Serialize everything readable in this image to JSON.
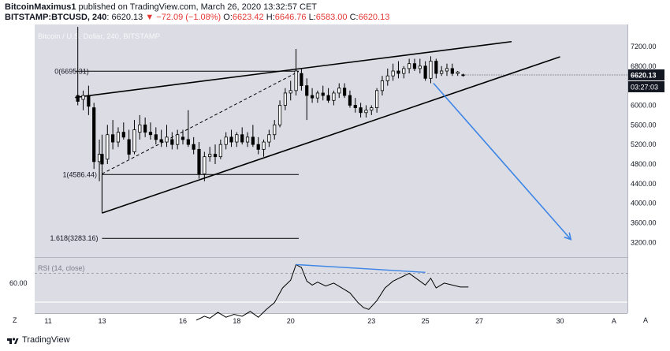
{
  "header": {
    "username": "BitcoinMaximus1",
    "published_text": "published on TradingView.com, March 26, 2020 13:32:57 CET",
    "symbol": "BITSTAMP:BTCUSD, 240",
    "last_price": "6620.13",
    "change": "▼ −72.09 (−1.08%)",
    "o_label": "O:",
    "o_value": "6623.42",
    "h_label": "H:",
    "h_value": "6646.76",
    "l_label": "L:",
    "l_value": "6583.00",
    "c_label": "C:",
    "c_value": "6620.13"
  },
  "footer": {
    "brand": "TradingView"
  },
  "colors": {
    "background": "#ffffff",
    "plot_bg": "#dcdde4",
    "candle_up": "#ffffff",
    "candle_down": "#000000",
    "arrow": "#3d85e6",
    "price_tag_dark": "#131722"
  },
  "chart_data": {
    "type": "candlestick",
    "title": "Bitcoin / U.S. Dollar, 240, BITSTAMP",
    "y_ticks": [
      "7200.00",
      "6800.00",
      "6400.00",
      "6000.00",
      "5600.00",
      "5200.00",
      "4800.00",
      "4400.00",
      "4000.00",
      "3600.00",
      "3200.00"
    ],
    "y_range": [
      2900,
      7650
    ],
    "x_ticks": [
      "11",
      "13",
      "16",
      "18",
      "20",
      "23",
      "25",
      "27",
      "30",
      "A"
    ],
    "x_tick_days": [
      11,
      13,
      16,
      18,
      20,
      23,
      25,
      27,
      30,
      32
    ],
    "x_range_days": [
      10.5,
      32.5
    ],
    "last_price_tag": "6620.13",
    "countdown_tag": "03:27:03",
    "fib_levels": [
      {
        "label": "0(6695.31)",
        "price": 6695.31
      },
      {
        "label": "1(4586.44)",
        "price": 4586.44
      },
      {
        "label": "1.618(3283.16)",
        "price": 3283.16
      }
    ],
    "wedge_upper": [
      [
        12.0,
        6160
      ],
      [
        28.2,
        7300
      ]
    ],
    "wedge_lower": [
      [
        13.0,
        3800
      ],
      [
        30.0,
        6990
      ]
    ],
    "diagonal_dashed": [
      [
        13.0,
        4600
      ],
      [
        20.3,
        6690
      ]
    ],
    "projection_arrow": [
      [
        25.3,
        6450
      ],
      [
        30.4,
        3260
      ]
    ],
    "candles": [
      {
        "d": 12.1,
        "o": 6200,
        "h": 7600,
        "l": 6000,
        "c": 6080
      },
      {
        "d": 12.3,
        "o": 6120,
        "h": 6300,
        "l": 5900,
        "c": 6200
      },
      {
        "d": 12.5,
        "o": 6200,
        "h": 6400,
        "l": 5800,
        "c": 5980
      },
      {
        "d": 12.7,
        "o": 5950,
        "h": 6050,
        "l": 4700,
        "c": 4850
      },
      {
        "d": 12.9,
        "o": 4850,
        "h": 5300,
        "l": 4450,
        "c": 5000
      },
      {
        "d": 13.0,
        "o": 5000,
        "h": 5400,
        "l": 3850,
        "c": 4800
      },
      {
        "d": 13.2,
        "o": 4900,
        "h": 5600,
        "l": 4800,
        "c": 5400
      },
      {
        "d": 13.4,
        "o": 5400,
        "h": 5700,
        "l": 5100,
        "c": 5250
      },
      {
        "d": 13.6,
        "o": 5250,
        "h": 5550,
        "l": 5150,
        "c": 5450
      },
      {
        "d": 13.8,
        "o": 5450,
        "h": 5650,
        "l": 5300,
        "c": 5350
      },
      {
        "d": 14.0,
        "o": 5300,
        "h": 5500,
        "l": 4900,
        "c": 5000
      },
      {
        "d": 14.2,
        "o": 5050,
        "h": 5700,
        "l": 5000,
        "c": 5500
      },
      {
        "d": 14.4,
        "o": 5450,
        "h": 5800,
        "l": 5300,
        "c": 5600
      },
      {
        "d": 14.6,
        "o": 5600,
        "h": 5750,
        "l": 5350,
        "c": 5450
      },
      {
        "d": 14.8,
        "o": 5450,
        "h": 5650,
        "l": 5300,
        "c": 5400
      },
      {
        "d": 15.0,
        "o": 5400,
        "h": 5550,
        "l": 5200,
        "c": 5300
      },
      {
        "d": 15.2,
        "o": 5300,
        "h": 5500,
        "l": 5150,
        "c": 5250
      },
      {
        "d": 15.4,
        "o": 5250,
        "h": 5600,
        "l": 5150,
        "c": 5350
      },
      {
        "d": 15.6,
        "o": 5300,
        "h": 5450,
        "l": 5100,
        "c": 5200
      },
      {
        "d": 15.8,
        "o": 5200,
        "h": 5500,
        "l": 5100,
        "c": 5400
      },
      {
        "d": 16.0,
        "o": 5350,
        "h": 5500,
        "l": 5200,
        "c": 5300
      },
      {
        "d": 16.2,
        "o": 5300,
        "h": 5900,
        "l": 5150,
        "c": 5200
      },
      {
        "d": 16.4,
        "o": 5200,
        "h": 5350,
        "l": 5000,
        "c": 5100
      },
      {
        "d": 16.6,
        "o": 5100,
        "h": 5250,
        "l": 4500,
        "c": 4600
      },
      {
        "d": 16.8,
        "o": 4600,
        "h": 5050,
        "l": 4450,
        "c": 4950
      },
      {
        "d": 17.0,
        "o": 4950,
        "h": 5150,
        "l": 4850,
        "c": 5000
      },
      {
        "d": 17.2,
        "o": 5000,
        "h": 5200,
        "l": 4800,
        "c": 4950
      },
      {
        "d": 17.4,
        "o": 4950,
        "h": 5300,
        "l": 4900,
        "c": 5200
      },
      {
        "d": 17.6,
        "o": 5200,
        "h": 5450,
        "l": 5100,
        "c": 5350
      },
      {
        "d": 17.8,
        "o": 5350,
        "h": 5500,
        "l": 5150,
        "c": 5250
      },
      {
        "d": 18.0,
        "o": 5250,
        "h": 5450,
        "l": 5150,
        "c": 5400
      },
      {
        "d": 18.2,
        "o": 5400,
        "h": 5550,
        "l": 5200,
        "c": 5250
      },
      {
        "d": 18.4,
        "o": 5250,
        "h": 5450,
        "l": 5150,
        "c": 5350
      },
      {
        "d": 18.6,
        "o": 5350,
        "h": 5600,
        "l": 5150,
        "c": 5200
      },
      {
        "d": 18.8,
        "o": 5200,
        "h": 5350,
        "l": 5000,
        "c": 5100
      },
      {
        "d": 19.0,
        "o": 5100,
        "h": 5300,
        "l": 4950,
        "c": 5250
      },
      {
        "d": 19.2,
        "o": 5250,
        "h": 5500,
        "l": 5150,
        "c": 5400
      },
      {
        "d": 19.4,
        "o": 5400,
        "h": 5700,
        "l": 5300,
        "c": 5600
      },
      {
        "d": 19.6,
        "o": 5600,
        "h": 6100,
        "l": 5550,
        "c": 6000
      },
      {
        "d": 19.8,
        "o": 6000,
        "h": 6350,
        "l": 5900,
        "c": 6250
      },
      {
        "d": 20.0,
        "o": 6250,
        "h": 6500,
        "l": 6100,
        "c": 6300
      },
      {
        "d": 20.2,
        "o": 6300,
        "h": 7150,
        "l": 6200,
        "c": 6700
      },
      {
        "d": 20.4,
        "o": 6650,
        "h": 6750,
        "l": 6300,
        "c": 6400
      },
      {
        "d": 20.6,
        "o": 6400,
        "h": 6550,
        "l": 5700,
        "c": 6200
      },
      {
        "d": 20.8,
        "o": 6200,
        "h": 6350,
        "l": 6050,
        "c": 6150
      },
      {
        "d": 21.0,
        "o": 6150,
        "h": 6300,
        "l": 6050,
        "c": 6250
      },
      {
        "d": 21.2,
        "o": 6250,
        "h": 6400,
        "l": 6100,
        "c": 6200
      },
      {
        "d": 21.4,
        "o": 6200,
        "h": 6350,
        "l": 6050,
        "c": 6100
      },
      {
        "d": 21.6,
        "o": 6100,
        "h": 6300,
        "l": 6000,
        "c": 6250
      },
      {
        "d": 21.8,
        "o": 6250,
        "h": 6450,
        "l": 6150,
        "c": 6350
      },
      {
        "d": 22.0,
        "o": 6350,
        "h": 6450,
        "l": 6150,
        "c": 6200
      },
      {
        "d": 22.2,
        "o": 6200,
        "h": 6300,
        "l": 5950,
        "c": 6000
      },
      {
        "d": 22.4,
        "o": 6000,
        "h": 6150,
        "l": 5850,
        "c": 5950
      },
      {
        "d": 22.6,
        "o": 5950,
        "h": 6050,
        "l": 5750,
        "c": 5850
      },
      {
        "d": 22.8,
        "o": 5850,
        "h": 6000,
        "l": 5750,
        "c": 5900
      },
      {
        "d": 23.0,
        "o": 5900,
        "h": 6000,
        "l": 5800,
        "c": 5950
      },
      {
        "d": 23.2,
        "o": 5950,
        "h": 6350,
        "l": 5850,
        "c": 6300
      },
      {
        "d": 23.4,
        "o": 6300,
        "h": 6600,
        "l": 6200,
        "c": 6500
      },
      {
        "d": 23.6,
        "o": 6500,
        "h": 6750,
        "l": 6400,
        "c": 6600
      },
      {
        "d": 23.8,
        "o": 6600,
        "h": 6850,
        "l": 6500,
        "c": 6700
      },
      {
        "d": 24.0,
        "o": 6700,
        "h": 6900,
        "l": 6550,
        "c": 6650
      },
      {
        "d": 24.2,
        "o": 6650,
        "h": 6800,
        "l": 6550,
        "c": 6750
      },
      {
        "d": 24.4,
        "o": 6750,
        "h": 6950,
        "l": 6650,
        "c": 6850
      },
      {
        "d": 24.6,
        "o": 6850,
        "h": 6950,
        "l": 6700,
        "c": 6750
      },
      {
        "d": 24.8,
        "o": 6750,
        "h": 6950,
        "l": 6650,
        "c": 6800
      },
      {
        "d": 25.0,
        "o": 6800,
        "h": 6900,
        "l": 6500,
        "c": 6550
      },
      {
        "d": 25.2,
        "o": 6550,
        "h": 7000,
        "l": 6450,
        "c": 6900
      },
      {
        "d": 25.4,
        "o": 6900,
        "h": 6950,
        "l": 6550,
        "c": 6650
      },
      {
        "d": 25.6,
        "o": 6650,
        "h": 6800,
        "l": 6600,
        "c": 6700
      },
      {
        "d": 25.8,
        "o": 6700,
        "h": 6850,
        "l": 6600,
        "c": 6750
      },
      {
        "d": 26.0,
        "o": 6750,
        "h": 6850,
        "l": 6600,
        "c": 6650
      },
      {
        "d": 26.2,
        "o": 6650,
        "h": 6700,
        "l": 6600,
        "c": 6680
      },
      {
        "d": 26.4,
        "o": 6623,
        "h": 6647,
        "l": 6583,
        "c": 6620
      }
    ],
    "rsi": {
      "label": "RSI (14, close)",
      "y_tick": "60.00",
      "level": 60,
      "range": [
        30,
        85
      ],
      "overbought": 70,
      "points": [
        [
          16.5,
          22
        ],
        [
          16.8,
          26
        ],
        [
          17.0,
          24
        ],
        [
          17.3,
          30
        ],
        [
          17.6,
          25
        ],
        [
          17.9,
          28
        ],
        [
          18.2,
          26
        ],
        [
          18.5,
          31
        ],
        [
          18.8,
          25
        ],
        [
          19.1,
          33
        ],
        [
          19.4,
          40
        ],
        [
          19.7,
          55
        ],
        [
          20.0,
          63
        ],
        [
          20.2,
          79
        ],
        [
          20.4,
          76
        ],
        [
          20.6,
          62
        ],
        [
          20.8,
          58
        ],
        [
          21.0,
          61
        ],
        [
          21.3,
          57
        ],
        [
          21.6,
          60
        ],
        [
          21.9,
          55
        ],
        [
          22.2,
          50
        ],
        [
          22.5,
          40
        ],
        [
          22.7,
          35
        ],
        [
          22.9,
          33
        ],
        [
          23.2,
          42
        ],
        [
          23.5,
          55
        ],
        [
          23.8,
          62
        ],
        [
          24.1,
          66
        ],
        [
          24.4,
          70
        ],
        [
          24.7,
          64
        ],
        [
          25.0,
          58
        ],
        [
          25.2,
          65
        ],
        [
          25.4,
          55
        ],
        [
          25.7,
          60
        ],
        [
          26.0,
          58
        ],
        [
          26.3,
          56
        ],
        [
          26.6,
          56
        ]
      ],
      "divergence_line": [
        [
          20.2,
          79
        ],
        [
          25.0,
          71
        ]
      ]
    }
  }
}
